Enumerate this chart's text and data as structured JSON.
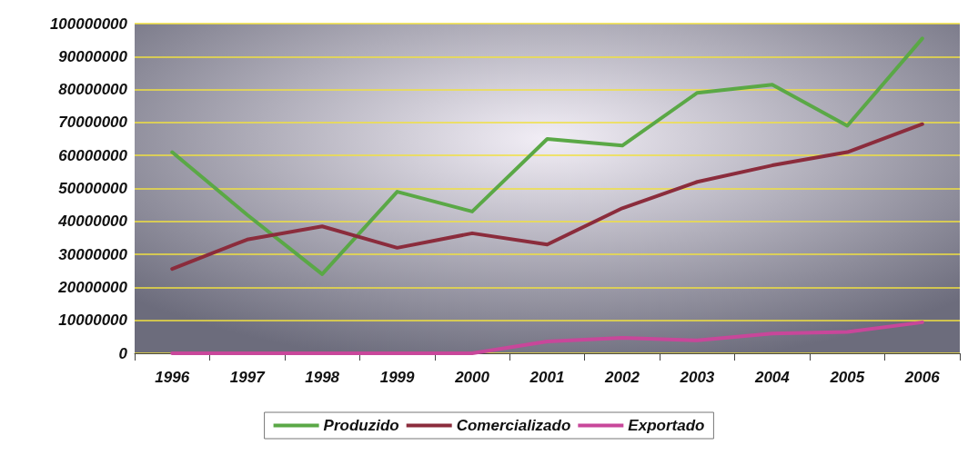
{
  "chart_data": {
    "type": "line",
    "categories": [
      "1996",
      "1997",
      "1998",
      "1999",
      "2000",
      "2001",
      "2002",
      "2003",
      "2004",
      "2005",
      "2006"
    ],
    "series": [
      {
        "name": "Produzido",
        "color": "#5aa846",
        "values": [
          61000000,
          42000000,
          24000000,
          49000000,
          43000000,
          65000000,
          63000000,
          79000000,
          81500000,
          69000000,
          95500000
        ]
      },
      {
        "name": "Comercializado",
        "color": "#8b2c3c",
        "values": [
          25600000,
          34500000,
          38500000,
          32000000,
          36400000,
          33000000,
          44000000,
          52000000,
          57000000,
          61000000,
          69500000
        ]
      },
      {
        "name": "Exportado",
        "color": "#c8479a",
        "values": [
          0,
          0,
          0,
          0,
          0,
          3600000,
          4700000,
          3900000,
          6000000,
          6500000,
          9400000
        ]
      }
    ],
    "ylim": [
      0,
      100000000
    ],
    "yticks": [
      0,
      10000000,
      20000000,
      30000000,
      40000000,
      50000000,
      60000000,
      70000000,
      80000000,
      90000000,
      100000000
    ],
    "grid": "y",
    "legend": "bottom",
    "marker": "none",
    "line_style": "solid"
  }
}
